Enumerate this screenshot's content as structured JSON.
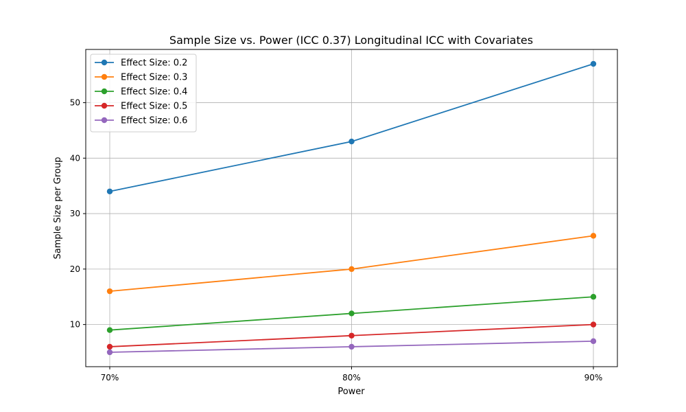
{
  "chart_data": {
    "type": "line",
    "title": "Sample Size vs. Power (ICC 0.37) Longitudinal ICC with Covariates",
    "xlabel": "Power",
    "ylabel": "Sample Size per Group",
    "categories": [
      "70%",
      "80%",
      "90%"
    ],
    "ylim": [
      2.4,
      59.6
    ],
    "yticks": [
      10,
      20,
      30,
      40,
      50
    ],
    "grid": true,
    "legend_position": "top-left",
    "series": [
      {
        "name": "Effect Size: 0.2",
        "color": "#1f77b4",
        "values": [
          34,
          43,
          57
        ]
      },
      {
        "name": "Effect Size: 0.3",
        "color": "#ff7f0e",
        "values": [
          16,
          20,
          26
        ]
      },
      {
        "name": "Effect Size: 0.4",
        "color": "#2ca02c",
        "values": [
          9,
          12,
          15
        ]
      },
      {
        "name": "Effect Size: 0.5",
        "color": "#d62728",
        "values": [
          6,
          8,
          10
        ]
      },
      {
        "name": "Effect Size: 0.6",
        "color": "#9467bd",
        "values": [
          5,
          6,
          7
        ]
      }
    ]
  }
}
